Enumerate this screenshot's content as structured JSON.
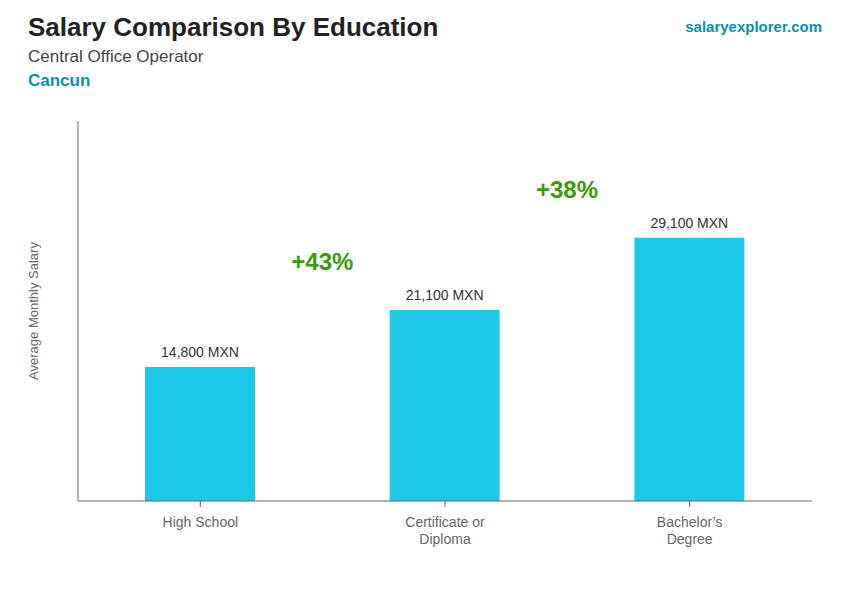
{
  "chart_data": {
    "type": "bar",
    "title": "Salary Comparison By Education",
    "subtitle": [
      "Central Office Operator",
      "Cancun"
    ],
    "source": "salaryexplorer.com",
    "ylabel": "Average Monthly Salary",
    "categories": [
      "High School",
      "Certificate or\nDiploma",
      "Bachelor’s\nDegree"
    ],
    "values": [
      14800,
      21100,
      29100
    ],
    "value_labels": [
      "14,800 MXN",
      "21,100 MXN",
      "29,100 MXN"
    ],
    "data_labels": true,
    "annotations": [
      "+43%",
      "+38%"
    ],
    "color": "#1ec8e8",
    "ylim": [
      0,
      42000
    ],
    "grid": false,
    "tick_labels": "x"
  }
}
